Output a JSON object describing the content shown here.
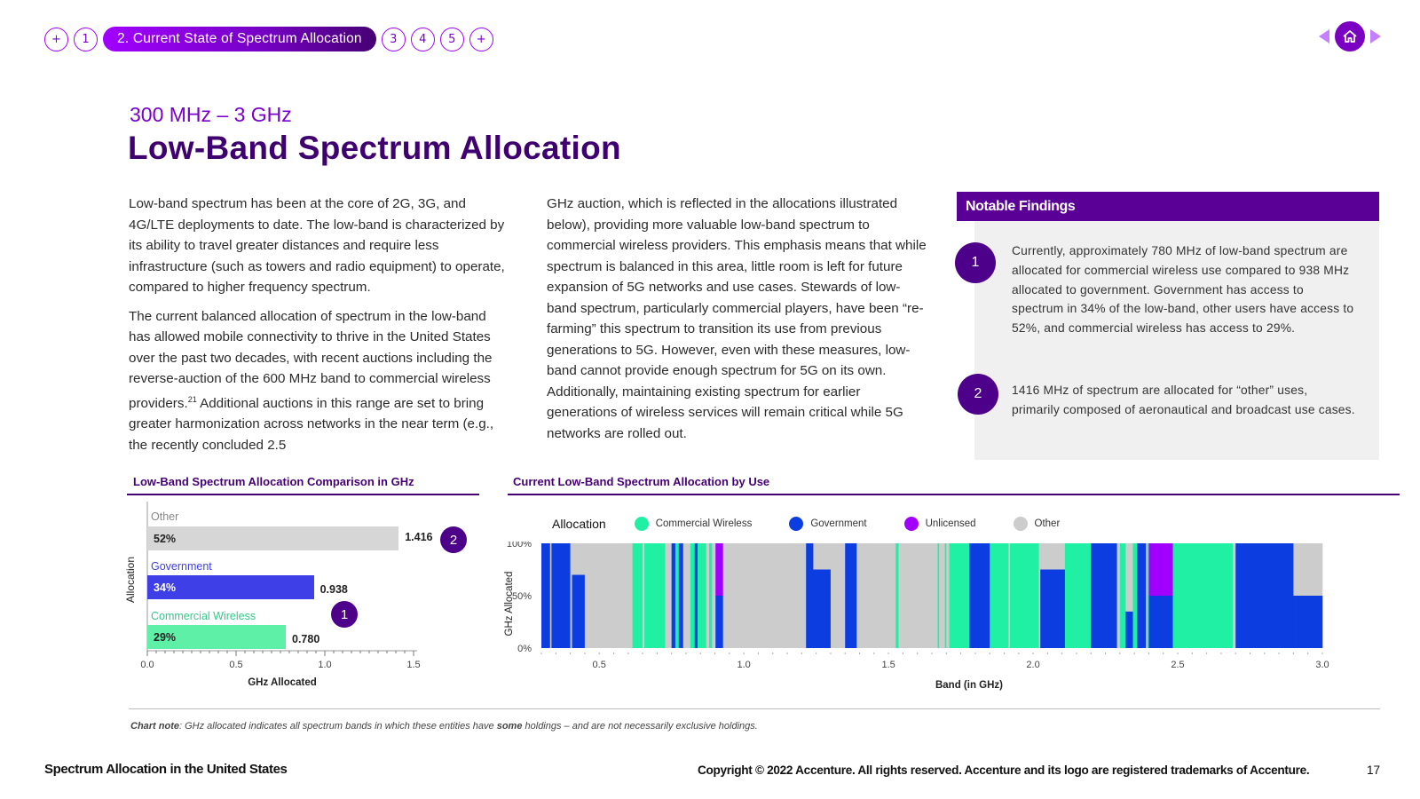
{
  "nav": {
    "items": [
      {
        "label": "+"
      },
      {
        "label": "1"
      },
      {
        "label": "2. Current State of Spectrum Allocation"
      },
      {
        "label": "3"
      },
      {
        "label": "4"
      },
      {
        "label": "5"
      },
      {
        "label": "+"
      }
    ],
    "prev_icon": "triangle-left-icon",
    "home_icon": "home-icon",
    "next_icon": "triangle-right-icon"
  },
  "header": {
    "subtitle": "300 MHz – 3 GHz",
    "title": "Low-Band Spectrum Allocation"
  },
  "body": {
    "col1_p1": "Low-band spectrum has been at the core of 2G, 3G, and 4G/LTE deployments to date. The low-band is characterized by its ability to travel greater distances and require less infrastructure (such as towers and radio equipment) to operate, compared to higher frequency spectrum.",
    "col1_p2a": "The current balanced allocation of spectrum in the low-band has allowed mobile connectivity to thrive in the United States over the past two decades, with recent auctions including the reverse-auction of the 600 MHz band to commercial wireless providers.",
    "col1_p2_sup": "21",
    "col1_p2b": " Additional auctions in this range are set to bring greater harmonization across networks in the near term (e.g., the recently concluded 2.5",
    "col2_p1": "GHz auction, which is reflected in the allocations illustrated below), providing more valuable low-band spectrum to commercial wireless providers. This emphasis means that while spectrum is balanced in this area, little room is left for future expansion of 5G networks and use cases. Stewards of low-band spectrum, particularly commercial players, have been “re-farming” this spectrum to transition its use from previous generations to 5G. However, even with these measures, low-band cannot provide enough spectrum for 5G on its own. Additionally, maintaining existing spectrum for earlier generations of wireless services will remain critical while 5G networks are rolled out."
  },
  "findings": {
    "heading": "Notable Findings",
    "items": [
      {
        "num": "1",
        "text": "Currently, approximately 780 MHz of low-band spectrum are allocated for commercial wireless use compared to 938 MHz allocated to government. Government has access to spectrum in 34% of the low-band, other users have access to 52%, and commercial wireless has access to 29%."
      },
      {
        "num": "2",
        "text": "1416 MHz of spectrum are allocated for “other” uses, primarily composed of aeronautical and broadcast use cases."
      }
    ]
  },
  "colors": {
    "commercial": "#1ff0a4",
    "government": "#0b3de0",
    "unlicensed": "#a100ff",
    "other": "#cccccc",
    "bar_other": "#d6d6d6",
    "bar_government": "#3f3fe8",
    "bar_commercial": "#5ff0a8",
    "accent": "#460073"
  },
  "chart_data": [
    {
      "type": "bar",
      "orientation": "horizontal",
      "title": "Low-Band Spectrum Allocation Comparison in GHz",
      "xlabel": "GHz Allocated",
      "ylabel": "Allocation",
      "xlim": [
        0,
        1.5
      ],
      "x_ticks": [
        "0.0",
        "0.5",
        "1.0",
        "1.5"
      ],
      "categories": [
        "Other",
        "Government",
        "Commercial Wireless"
      ],
      "values": [
        1.416,
        0.938,
        0.78
      ],
      "value_labels": [
        "1.416",
        "0.938",
        "0.780"
      ],
      "percent_labels": [
        "52%",
        "34%",
        "29%"
      ],
      "callouts": [
        {
          "label": "2",
          "category": "Other"
        },
        {
          "label": "1",
          "category": "Commercial Wireless"
        }
      ]
    },
    {
      "type": "area",
      "stacked": true,
      "title": "Current Low-Band Spectrum Allocation by Use",
      "legend_title": "Allocation",
      "legend_position": "top",
      "xlabel": "Band (in GHz)",
      "ylabel": "GHz Allocated",
      "xlim": [
        0.3,
        3.0
      ],
      "x_ticks": [
        "0.5",
        "1.0",
        "1.5",
        "2.0",
        "2.5",
        "3.0"
      ],
      "ylim": [
        0,
        100
      ],
      "y_ticks": [
        "0%",
        "50%",
        "100%"
      ],
      "series": [
        {
          "name": "Commercial Wireless",
          "color": "#1ff0a4"
        },
        {
          "name": "Government",
          "color": "#0b3de0"
        },
        {
          "name": "Unlicensed",
          "color": "#a100ff"
        },
        {
          "name": "Other",
          "color": "#cccccc"
        }
      ],
      "bands": [
        {
          "from": 0.3,
          "to": 0.33,
          "gov": 100
        },
        {
          "from": 0.33,
          "to": 0.335,
          "other": 100
        },
        {
          "from": 0.335,
          "to": 0.4,
          "gov": 100
        },
        {
          "from": 0.4,
          "to": 0.406,
          "other": 100
        },
        {
          "from": 0.406,
          "to": 0.45,
          "gov": 70,
          "other": 30
        },
        {
          "from": 0.45,
          "to": 0.615,
          "other": 100
        },
        {
          "from": 0.615,
          "to": 0.62,
          "comm": 100
        },
        {
          "from": 0.62,
          "to": 0.65,
          "comm": 100
        },
        {
          "from": 0.65,
          "to": 0.656,
          "other": 100
        },
        {
          "from": 0.656,
          "to": 0.695,
          "comm": 100
        },
        {
          "from": 0.695,
          "to": 0.728,
          "comm": 100
        },
        {
          "from": 0.728,
          "to": 0.75,
          "other": 100
        },
        {
          "from": 0.75,
          "to": 0.763,
          "gov": 100
        },
        {
          "from": 0.763,
          "to": 0.775,
          "comm": 100
        },
        {
          "from": 0.775,
          "to": 0.79,
          "gov": 100
        },
        {
          "from": 0.79,
          "to": 0.815,
          "other": 100
        },
        {
          "from": 0.815,
          "to": 0.83,
          "comm": 100
        },
        {
          "from": 0.83,
          "to": 0.84,
          "gov": 100
        },
        {
          "from": 0.84,
          "to": 0.85,
          "comm": 100
        },
        {
          "from": 0.85,
          "to": 0.87,
          "comm": 100
        },
        {
          "from": 0.87,
          "to": 0.88,
          "other": 100
        },
        {
          "from": 0.88,
          "to": 0.89,
          "comm": 100
        },
        {
          "from": 0.89,
          "to": 0.902,
          "other": 100
        },
        {
          "from": 0.902,
          "to": 0.928,
          "gov": 50,
          "unl": 50
        },
        {
          "from": 0.928,
          "to": 1.215,
          "other": 100
        },
        {
          "from": 1.215,
          "to": 1.24,
          "gov": 100
        },
        {
          "from": 1.24,
          "to": 1.3,
          "gov": 75,
          "other": 25
        },
        {
          "from": 1.3,
          "to": 1.35,
          "other": 100
        },
        {
          "from": 1.35,
          "to": 1.39,
          "gov": 100
        },
        {
          "from": 1.39,
          "to": 1.427,
          "other": 100
        },
        {
          "from": 1.427,
          "to": 1.435,
          "other": 100
        },
        {
          "from": 1.435,
          "to": 1.525,
          "other": 100
        },
        {
          "from": 1.525,
          "to": 1.535,
          "comm": 100
        },
        {
          "from": 1.535,
          "to": 1.67,
          "other": 100
        },
        {
          "from": 1.67,
          "to": 1.675,
          "comm": 100
        },
        {
          "from": 1.675,
          "to": 1.695,
          "other": 100
        },
        {
          "from": 1.695,
          "to": 1.7,
          "comm": 100
        },
        {
          "from": 1.7,
          "to": 1.71,
          "other": 100
        },
        {
          "from": 1.71,
          "to": 1.78,
          "comm": 100
        },
        {
          "from": 1.78,
          "to": 1.85,
          "gov": 100
        },
        {
          "from": 1.85,
          "to": 1.915,
          "comm": 100
        },
        {
          "from": 1.915,
          "to": 1.92,
          "other": 100
        },
        {
          "from": 1.92,
          "to": 2.0,
          "comm": 100
        },
        {
          "from": 2.0,
          "to": 2.02,
          "comm": 100
        },
        {
          "from": 2.02,
          "to": 2.025,
          "other": 100
        },
        {
          "from": 2.025,
          "to": 2.11,
          "gov": 75,
          "other": 25
        },
        {
          "from": 2.11,
          "to": 2.2,
          "comm": 100
        },
        {
          "from": 2.2,
          "to": 2.29,
          "gov": 100
        },
        {
          "from": 2.29,
          "to": 2.3,
          "other": 100
        },
        {
          "from": 2.3,
          "to": 2.305,
          "comm": 100
        },
        {
          "from": 2.305,
          "to": 2.32,
          "comm": 100
        },
        {
          "from": 2.32,
          "to": 2.345,
          "gov": 35,
          "other": 65
        },
        {
          "from": 2.345,
          "to": 2.36,
          "comm": 100
        },
        {
          "from": 2.36,
          "to": 2.39,
          "gov": 100
        },
        {
          "from": 2.39,
          "to": 2.395,
          "other": 100
        },
        {
          "from": 2.395,
          "to": 2.4,
          "comm": 100
        },
        {
          "from": 2.4,
          "to": 2.483,
          "gov": 50,
          "unl": 50
        },
        {
          "from": 2.483,
          "to": 2.5,
          "comm": 100
        },
        {
          "from": 2.5,
          "to": 2.69,
          "comm": 100
        },
        {
          "from": 2.69,
          "to": 2.7,
          "other": 100
        },
        {
          "from": 2.7,
          "to": 2.9,
          "gov": 100
        },
        {
          "from": 2.9,
          "to": 3.0,
          "gov": 50,
          "other": 50
        }
      ]
    }
  ],
  "chart_note": {
    "label": "Chart note",
    "text_a": ": GHz allocated indicates all spectrum bands in which these entities have ",
    "bold": "some",
    "text_b": " holdings – and are not necessarily exclusive holdings."
  },
  "footer": {
    "left": "Spectrum Allocation in the United States",
    "copyright": "Copyright © 2022 Accenture. All rights reserved. Accenture and its logo are registered trademarks of Accenture.",
    "page": "17"
  }
}
